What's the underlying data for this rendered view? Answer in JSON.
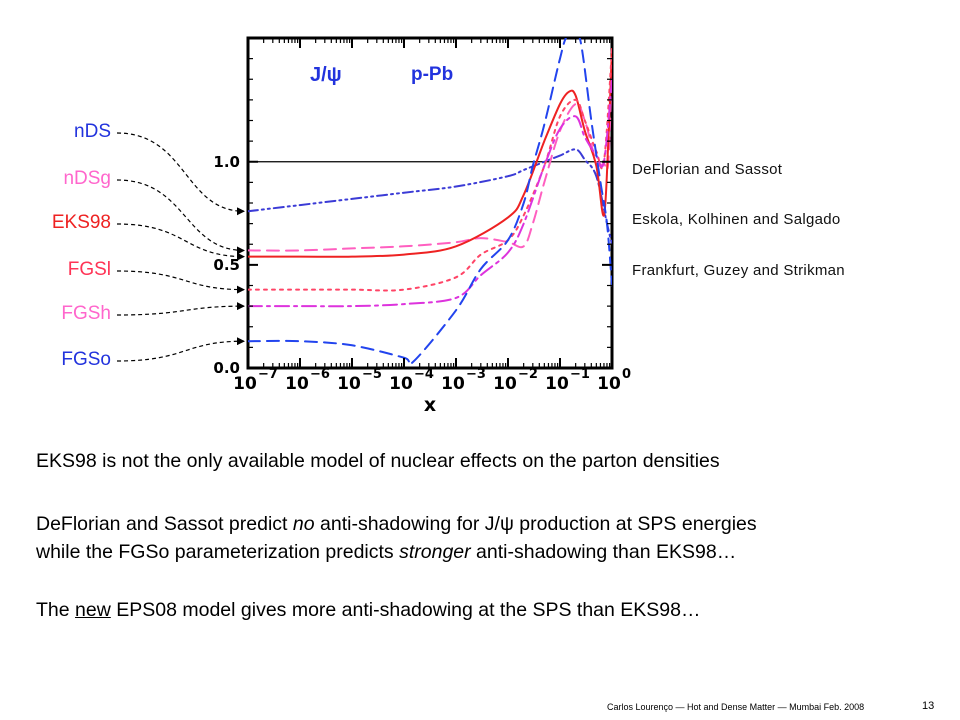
{
  "chart_data": {
    "type": "line",
    "title": "",
    "plot_labels": {
      "particle": "J/ψ",
      "system": "p-Pb"
    },
    "xlabel": "x",
    "xscale": "log",
    "xlim": [
      1e-07,
      1
    ],
    "ylim": [
      0,
      1.6
    ],
    "x_ticks": [
      {
        "x": 1e-07,
        "base": "10",
        "exp": "−7"
      },
      {
        "x": 1e-06,
        "base": "10",
        "exp": "−6"
      },
      {
        "x": 1e-05,
        "base": "10",
        "exp": "−5"
      },
      {
        "x": 0.0001,
        "base": "10",
        "exp": "−4"
      },
      {
        "x": 0.001,
        "base": "10",
        "exp": "−3"
      },
      {
        "x": 0.01,
        "base": "10",
        "exp": "−2"
      },
      {
        "x": 0.1,
        "base": "10",
        "exp": "−1"
      },
      {
        "x": 1,
        "base": "10",
        "exp": "0"
      }
    ],
    "y_ticks": [
      {
        "y": 0.0,
        "label": "0.0"
      },
      {
        "y": 0.5,
        "label": "0.5"
      },
      {
        "y": 1.0,
        "label": "1.0"
      }
    ],
    "reference_line": 1.0,
    "grid": false,
    "series": [
      {
        "name": "nDS",
        "color": "#3b3bd6",
        "dash": "dashdotdot",
        "x": [
          1e-07,
          1e-06,
          1e-05,
          0.0001,
          0.001,
          0.01,
          0.02,
          0.05,
          0.1,
          0.2,
          0.3,
          0.5,
          0.8,
          1
        ],
        "y": [
          0.76,
          0.79,
          0.82,
          0.85,
          0.88,
          0.93,
          0.96,
          1.0,
          1.03,
          1.06,
          1.01,
          0.93,
          0.7,
          0.6
        ]
      },
      {
        "name": "nDSg",
        "color": "#ff5fc0",
        "dash": "dashed",
        "x": [
          1e-07,
          1e-06,
          1e-05,
          0.0001,
          0.001,
          0.003,
          0.01,
          0.02,
          0.03,
          0.05,
          0.1,
          0.2,
          0.3,
          0.5,
          0.7,
          0.85,
          1
        ],
        "y": [
          0.57,
          0.57,
          0.58,
          0.59,
          0.61,
          0.63,
          0.61,
          0.59,
          0.7,
          0.9,
          1.15,
          1.28,
          1.2,
          1.0,
          0.99,
          1.0,
          1.5
        ]
      },
      {
        "name": "EKS98",
        "color": "#ee2222",
        "dash": "solid",
        "x": [
          1e-07,
          1e-06,
          1e-05,
          0.0001,
          0.001,
          0.01,
          0.02,
          0.05,
          0.1,
          0.15,
          0.2,
          0.3,
          0.5,
          0.7,
          0.85,
          1
        ],
        "y": [
          0.54,
          0.54,
          0.54,
          0.55,
          0.59,
          0.73,
          0.84,
          1.1,
          1.28,
          1.34,
          1.32,
          1.15,
          0.98,
          0.74,
          1.1,
          1.55
        ]
      },
      {
        "name": "FGSl",
        "color": "#ff4466",
        "dash": "dotted",
        "x": [
          1e-07,
          1e-06,
          1e-05,
          0.0001,
          0.001,
          0.003,
          0.01,
          0.02,
          0.05,
          0.1,
          0.2,
          0.3,
          0.5,
          0.7,
          1
        ],
        "y": [
          0.38,
          0.38,
          0.38,
          0.38,
          0.44,
          0.55,
          0.62,
          0.74,
          0.98,
          1.22,
          1.3,
          1.2,
          1.05,
          1.0,
          1.55
        ]
      },
      {
        "name": "FGSh",
        "color": "#dd33dd",
        "dash": "dashdot",
        "x": [
          1e-07,
          1e-06,
          1e-05,
          0.0001,
          0.001,
          0.003,
          0.01,
          0.02,
          0.05,
          0.1,
          0.2,
          0.3,
          0.5,
          0.7,
          1
        ],
        "y": [
          0.3,
          0.3,
          0.3,
          0.31,
          0.34,
          0.45,
          0.56,
          0.7,
          0.98,
          1.16,
          1.22,
          1.12,
          1.03,
          1.0,
          1.4
        ]
      },
      {
        "name": "FGSo",
        "color": "#2244ee",
        "dash": "dashed",
        "x": [
          1e-07,
          1e-06,
          1e-05,
          0.0001,
          0.00015,
          0.001,
          0.003,
          0.01,
          0.02,
          0.03,
          0.05,
          0.08,
          0.1,
          0.13,
          0.18,
          0.25,
          0.4,
          0.6,
          0.8,
          1
        ],
        "y": [
          0.13,
          0.13,
          0.11,
          0.05,
          0.03,
          0.28,
          0.48,
          0.62,
          0.8,
          0.98,
          1.18,
          1.4,
          1.5,
          1.6,
          1.62,
          1.58,
          1.2,
          0.9,
          0.7,
          0.4
        ]
      }
    ]
  },
  "side_notes": [
    "DeFlorian and Sassot",
    "Eskola, Kolhinen and Salgado",
    "Frankfurt, Guzey and Strikman"
  ],
  "paragraph1": "EKS98 is not the only available model of nuclear effects on the parton densities",
  "paragraph2": {
    "p1": "DeFlorian and Sassot predict ",
    "em1": "no",
    "p2": " anti-shadowing for J/ψ production at SPS energies",
    "line2a": "while the FGSo parameterization predicts ",
    "em2": "stronger",
    "line2b": " anti-shadowing than EKS98…"
  },
  "paragraph3": {
    "p1": "The ",
    "u": "new",
    "p2": " EPS08 model gives more anti-shadowing at the SPS than EKS98…"
  },
  "footer": "Carlos Lourenço — Hot and Dense Matter — Mumbai Feb. 2008",
  "page_number": "13"
}
